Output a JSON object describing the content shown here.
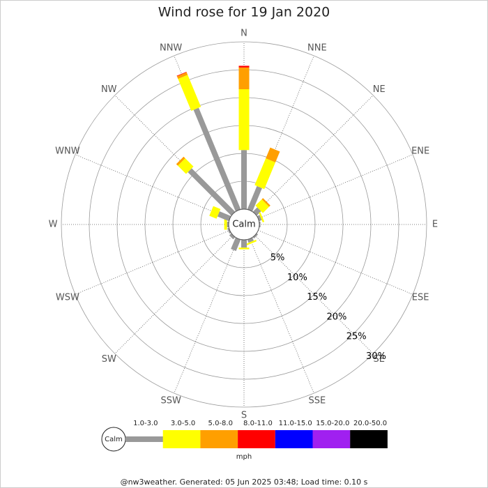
{
  "chart_data": {
    "type": "windrose",
    "title": "Wind rose for 19 Jan 2020",
    "categories": [
      "N",
      "NNE",
      "NE",
      "ENE",
      "E",
      "ESE",
      "SE",
      "SSE",
      "S",
      "SSW",
      "SW",
      "WSW",
      "W",
      "WNW",
      "NW",
      "NNW"
    ],
    "center_label": "Calm",
    "series": [
      {
        "name": "1.0-3.0",
        "color": "#999999",
        "values": [
          10.6,
          4.5,
          1.1,
          0.5,
          0.2,
          0,
          0.3,
          0.6,
          1.4,
          2.2,
          0.5,
          0.3,
          0.3,
          2.2,
          11.0,
          19.7
        ]
      },
      {
        "name": "3.0-5.0",
        "color": "#ffff00",
        "values": [
          10.9,
          5.2,
          1.6,
          0.3,
          0,
          0,
          0,
          0.3,
          0.3,
          0,
          0,
          0,
          0.5,
          1.4,
          2.1,
          6.2
        ]
      },
      {
        "name": "5.0-8.0",
        "color": "#ff9f00",
        "values": [
          3.9,
          2.1,
          0.3,
          0,
          0,
          0,
          0,
          0,
          0,
          0,
          0,
          0,
          0,
          0,
          0.4,
          0.5
        ]
      },
      {
        "name": "8.0-11.0",
        "color": "#ff0000",
        "values": [
          0.3,
          0,
          0,
          0,
          0,
          0,
          0,
          0,
          0,
          0,
          0,
          0,
          0,
          0,
          0,
          0.1
        ]
      },
      {
        "name": "11.0-15.0",
        "color": "#0000ff",
        "values": [
          0,
          0,
          0,
          0,
          0,
          0,
          0,
          0,
          0,
          0,
          0,
          0,
          0,
          0,
          0,
          0
        ]
      },
      {
        "name": "15.0-20.0",
        "color": "#a020f0",
        "values": [
          0,
          0,
          0,
          0,
          0,
          0,
          0,
          0,
          0,
          0,
          0,
          0,
          0,
          0,
          0,
          0
        ]
      },
      {
        "name": "20.0-50.0",
        "color": "#000000",
        "values": [
          0,
          0,
          0,
          0,
          0,
          0,
          0,
          0,
          0,
          0,
          0,
          0,
          0,
          0,
          0,
          0
        ]
      }
    ],
    "ylim": [
      0,
      30
    ],
    "yticks": [
      {
        "value": 5,
        "label": "5%"
      },
      {
        "value": 10,
        "label": "10%"
      },
      {
        "value": 15,
        "label": "15%"
      },
      {
        "value": 20,
        "label": "20%"
      },
      {
        "value": 25,
        "label": "25%"
      },
      {
        "value": 30,
        "label": "30%"
      }
    ],
    "legend_unit": "mph",
    "footer": "@nw3weather. Generated: 05 Jun 2025 03:48; Load time: 0.10 s"
  }
}
